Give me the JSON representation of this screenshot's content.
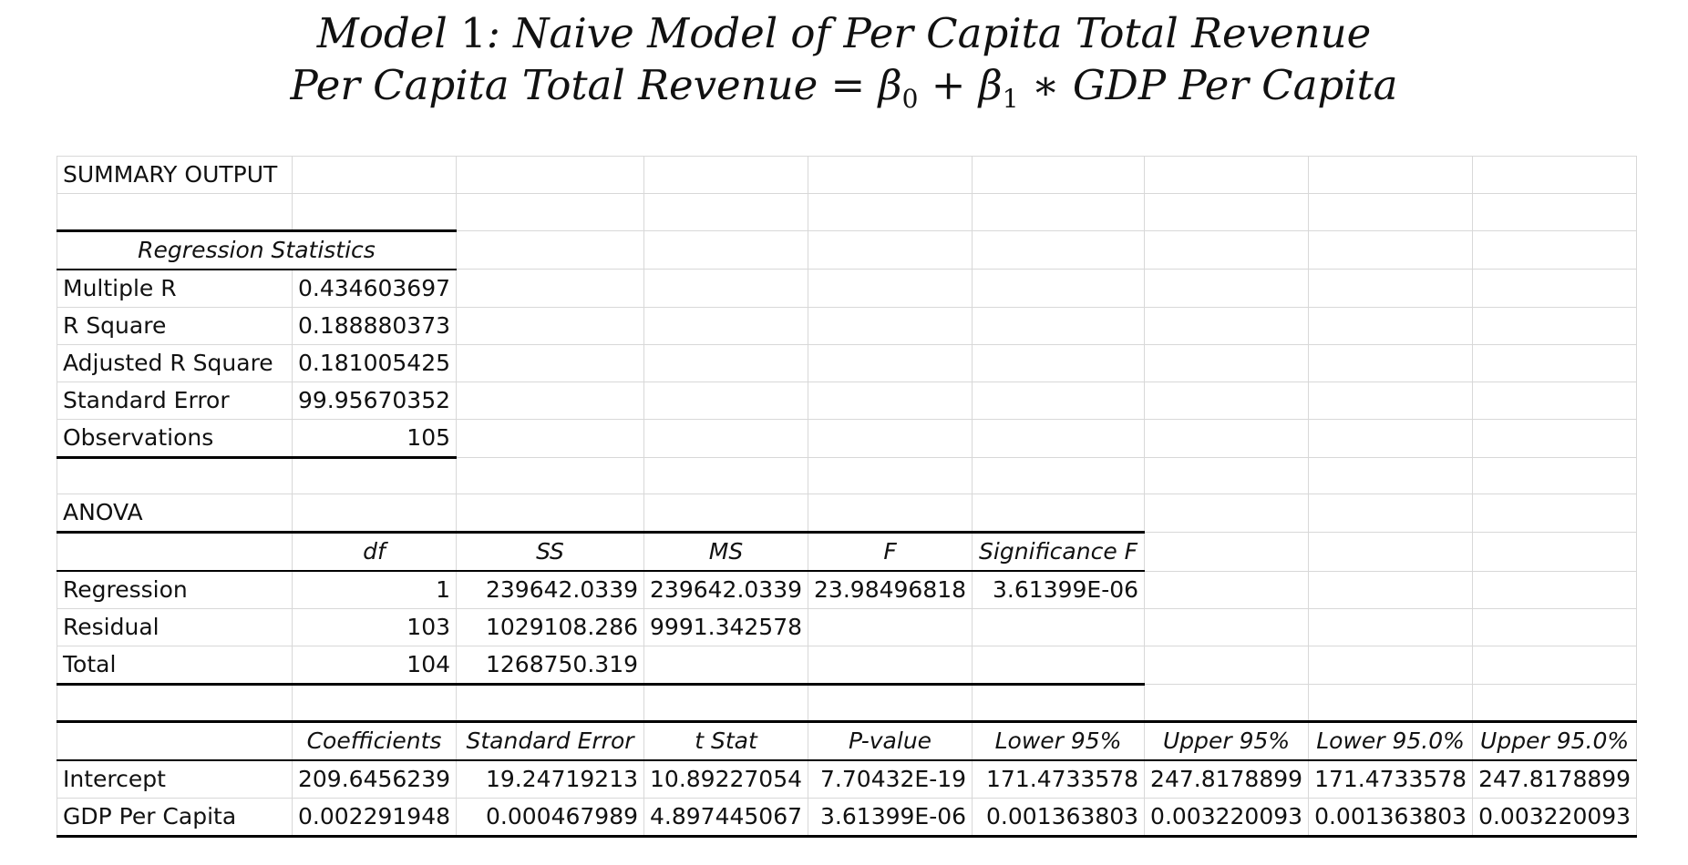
{
  "title": {
    "line1_prefix": "Model",
    "line1_num": "1",
    "line1_rest": ": Naive Model of Per Capita Total Revenue",
    "line2_lhs": "Per Capita Total Revenue",
    "line2_eq": "=",
    "line2_b0": "β",
    "line2_b0_sub": "0",
    "line2_plus": "+",
    "line2_b1": "β",
    "line2_b1_sub": "1",
    "line2_times": "∗",
    "line2_rhs": "GDP Per Capita"
  },
  "summary_output": "SUMMARY OUTPUT",
  "regression_statistics": {
    "header": "Regression Statistics",
    "rows": [
      {
        "label": "Multiple R",
        "value": "0.434603697"
      },
      {
        "label": "R Square",
        "value": "0.188880373"
      },
      {
        "label": "Adjusted R Square",
        "value": "0.181005425"
      },
      {
        "label": "Standard Error",
        "value": "99.95670352"
      },
      {
        "label": "Observations",
        "value": "105"
      }
    ]
  },
  "anova": {
    "label": "ANOVA",
    "headers": [
      "df",
      "SS",
      "MS",
      "F",
      "Significance F"
    ],
    "rows": [
      {
        "label": "Regression",
        "df": "1",
        "ss": "239642.0339",
        "ms": "239642.0339",
        "f": "23.98496818",
        "sig": "3.61399E-06"
      },
      {
        "label": "Residual",
        "df": "103",
        "ss": "1029108.286",
        "ms": "9991.342578",
        "f": "",
        "sig": ""
      },
      {
        "label": "Total",
        "df": "104",
        "ss": "1268750.319",
        "ms": "",
        "f": "",
        "sig": ""
      }
    ]
  },
  "coefficients": {
    "headers": [
      "Coefficients",
      "Standard Error",
      "t Stat",
      "P-value",
      "Lower 95%",
      "Upper 95%",
      "Lower 95.0%",
      "Upper 95.0%"
    ],
    "rows": [
      {
        "label": "Intercept",
        "values": [
          "209.6456239",
          "19.24719213",
          "10.89227054",
          "7.70432E-19",
          "171.4733578",
          "247.8178899",
          "171.4733578",
          "247.8178899"
        ]
      },
      {
        "label": "GDP Per Capita",
        "values": [
          "0.002291948",
          "0.000467989",
          "4.897445067",
          "3.61399E-06",
          "0.001363803",
          "0.003220093",
          "0.001363803",
          "0.003220093"
        ]
      }
    ]
  }
}
